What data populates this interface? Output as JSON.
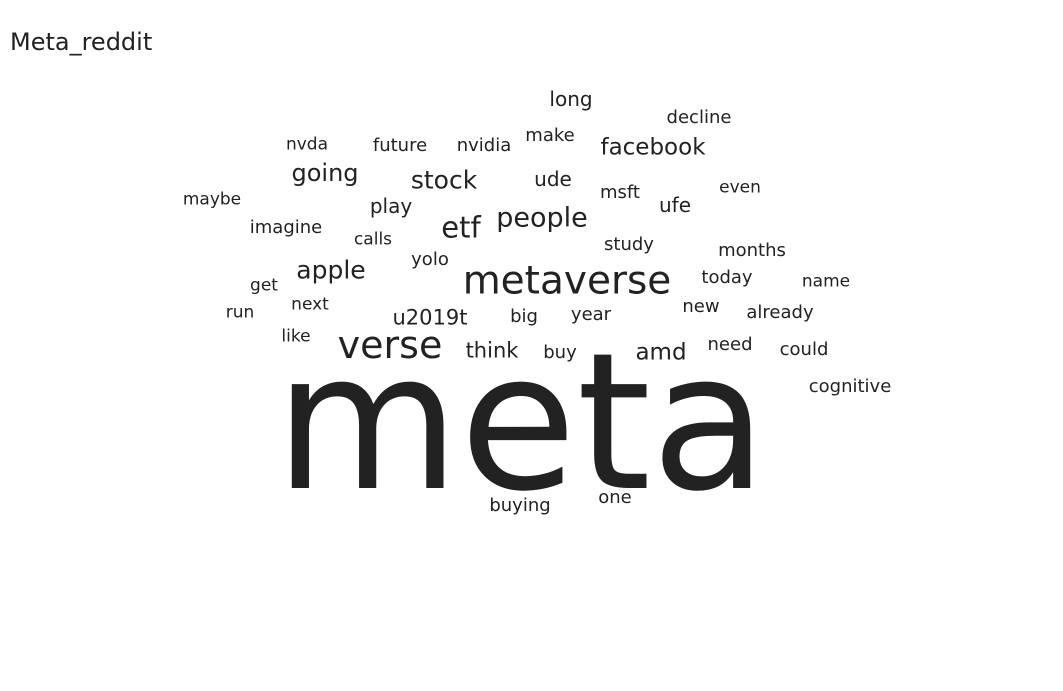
{
  "title": "Meta_reddit",
  "chart_data": {
    "type": "wordcloud",
    "title": "Meta_reddit",
    "color": "#222222",
    "words": [
      {
        "text": "meta",
        "weight": 100
      },
      {
        "text": "metaverse",
        "weight": 26
      },
      {
        "text": "verse",
        "weight": 25
      },
      {
        "text": "etf",
        "weight": 19
      },
      {
        "text": "people",
        "weight": 17
      },
      {
        "text": "stock",
        "weight": 16
      },
      {
        "text": "apple",
        "weight": 16
      },
      {
        "text": "going",
        "weight": 15
      },
      {
        "text": "facebook",
        "weight": 14
      },
      {
        "text": "amd",
        "weight": 14
      },
      {
        "text": "think",
        "weight": 13
      },
      {
        "text": "u2019t",
        "weight": 13
      },
      {
        "text": "play",
        "weight": 12
      },
      {
        "text": "long",
        "weight": 12
      },
      {
        "text": "ude",
        "weight": 12
      },
      {
        "text": "ufe",
        "weight": 12
      },
      {
        "text": "decline",
        "weight": 11
      },
      {
        "text": "future",
        "weight": 11
      },
      {
        "text": "make",
        "weight": 11
      },
      {
        "text": "nvidia",
        "weight": 11
      },
      {
        "text": "imagine",
        "weight": 11
      },
      {
        "text": "big",
        "weight": 11
      },
      {
        "text": "buy",
        "weight": 11
      },
      {
        "text": "year",
        "weight": 11
      },
      {
        "text": "study",
        "weight": 11
      },
      {
        "text": "months",
        "weight": 11
      },
      {
        "text": "yolo",
        "weight": 11
      },
      {
        "text": "buying",
        "weight": 11
      },
      {
        "text": "one",
        "weight": 11
      },
      {
        "text": "cognitive",
        "weight": 11
      },
      {
        "text": "already",
        "weight": 11
      },
      {
        "text": "could",
        "weight": 11
      },
      {
        "text": "need",
        "weight": 11
      },
      {
        "text": "today",
        "weight": 11
      },
      {
        "text": "new",
        "weight": 11
      },
      {
        "text": "msft",
        "weight": 11
      },
      {
        "text": "even",
        "weight": 10
      },
      {
        "text": "nvda",
        "weight": 10
      },
      {
        "text": "next",
        "weight": 10
      },
      {
        "text": "like",
        "weight": 10
      },
      {
        "text": "get",
        "weight": 10
      },
      {
        "text": "name",
        "weight": 10
      },
      {
        "text": "calls",
        "weight": 10
      },
      {
        "text": "maybe",
        "weight": 10
      },
      {
        "text": "run",
        "weight": 10
      }
    ]
  }
}
